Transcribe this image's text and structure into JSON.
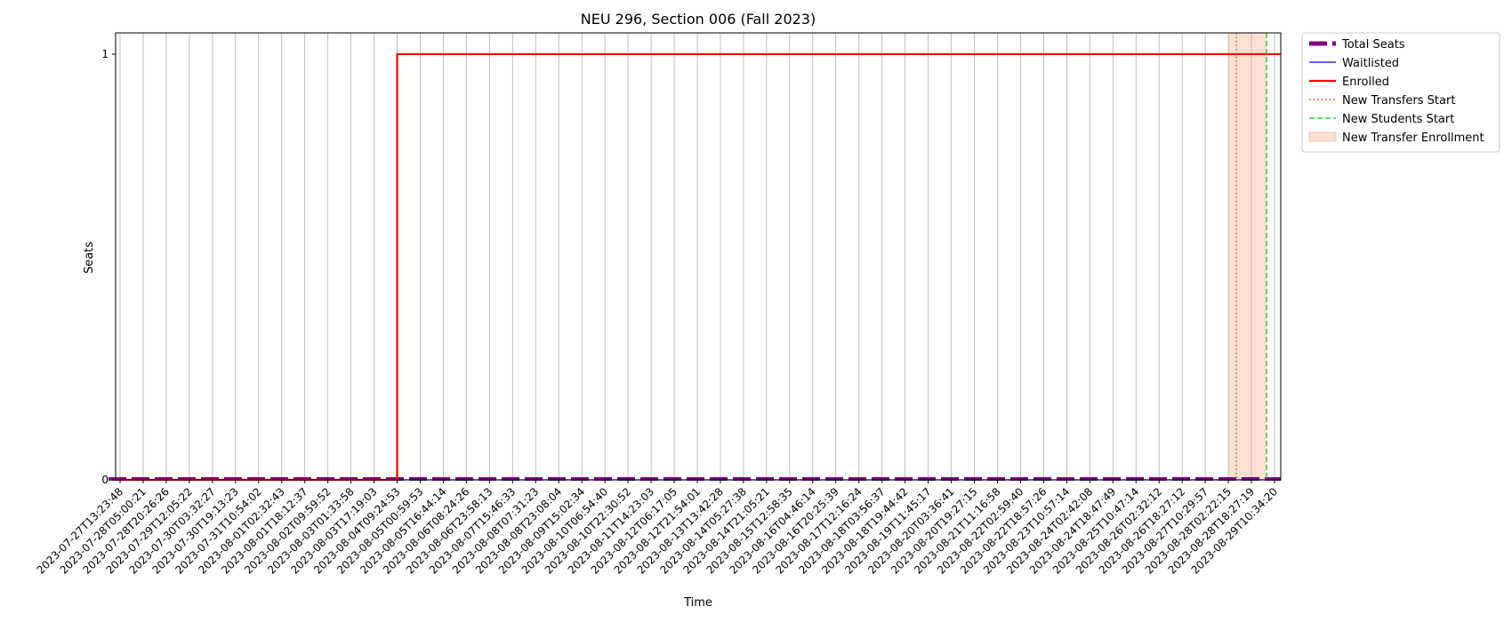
{
  "chart_data": {
    "type": "line",
    "title": "NEU 296, Section 006 (Fall 2023)",
    "xlabel": "Time",
    "ylabel": "Seats",
    "y_ticks": [
      "0",
      "1"
    ],
    "ylim": [
      0,
      1.05
    ],
    "grid": "vertical",
    "legend_placement": "outside-top-right",
    "x_ticks": [
      "2023-07-27T13:23:48",
      "2023-07-28T05:00:21",
      "2023-07-28T20:26:26",
      "2023-07-29T12:05:22",
      "2023-07-30T03:32:27",
      "2023-07-30T19:13:23",
      "2023-07-31T10:54:02",
      "2023-08-01T02:32:43",
      "2023-08-01T18:12:37",
      "2023-08-02T09:59:52",
      "2023-08-03T01:33:58",
      "2023-08-03T17:19:03",
      "2023-08-04T09:24:53",
      "2023-08-05T00:59:53",
      "2023-08-05T16:44:14",
      "2023-08-06T08:24:26",
      "2023-08-06T23:58:13",
      "2023-08-07T15:46:33",
      "2023-08-08T07:31:23",
      "2023-08-08T23:08:04",
      "2023-08-09T15:02:34",
      "2023-08-10T06:54:40",
      "2023-08-10T22:30:52",
      "2023-08-11T14:23:03",
      "2023-08-12T06:17:05",
      "2023-08-12T21:54:01",
      "2023-08-13T13:42:28",
      "2023-08-14T05:27:38",
      "2023-08-14T21:05:21",
      "2023-08-15T12:58:35",
      "2023-08-16T04:46:14",
      "2023-08-16T20:25:39",
      "2023-08-17T12:16:24",
      "2023-08-18T03:56:37",
      "2023-08-18T19:44:42",
      "2023-08-19T11:45:17",
      "2023-08-20T03:36:41",
      "2023-08-20T19:27:15",
      "2023-08-21T11:16:58",
      "2023-08-22T02:59:40",
      "2023-08-22T18:57:26",
      "2023-08-23T10:57:14",
      "2023-08-24T02:42:08",
      "2023-08-24T18:47:49",
      "2023-08-25T10:47:14",
      "2023-08-26T02:32:12",
      "2023-08-26T18:27:12",
      "2023-08-27T10:29:57",
      "2023-08-28T02:22:15",
      "2023-08-28T18:27:19",
      "2023-08-29T10:34:20"
    ],
    "series": [
      {
        "name": "Total Seats",
        "color": "#800080",
        "style": "dashed-thick",
        "values": [
          0,
          0
        ]
      },
      {
        "name": "Waitlisted",
        "color": "#0000ff",
        "style": "solid-thin",
        "values": [
          0,
          0
        ]
      },
      {
        "name": "Enrolled",
        "color": "#ff0000",
        "style": "solid-thick",
        "step_at": "2023-08-04T09:24:53",
        "values": [
          0,
          1
        ]
      }
    ],
    "annotations": [
      {
        "name": "New Transfers Start",
        "color": "#ff4500",
        "style": "dotted",
        "x": "2023-08-28T08:00:00"
      },
      {
        "name": "New Students Start",
        "color": "#32cd32",
        "style": "dashed",
        "x": "2023-08-29T05:00:00"
      },
      {
        "name": "New Transfer Enrollment",
        "color": "#f4a582",
        "style": "shaded-span",
        "x_start": "2023-08-28T02:22:15",
        "x_end": "2023-08-29T05:00:00"
      }
    ]
  }
}
